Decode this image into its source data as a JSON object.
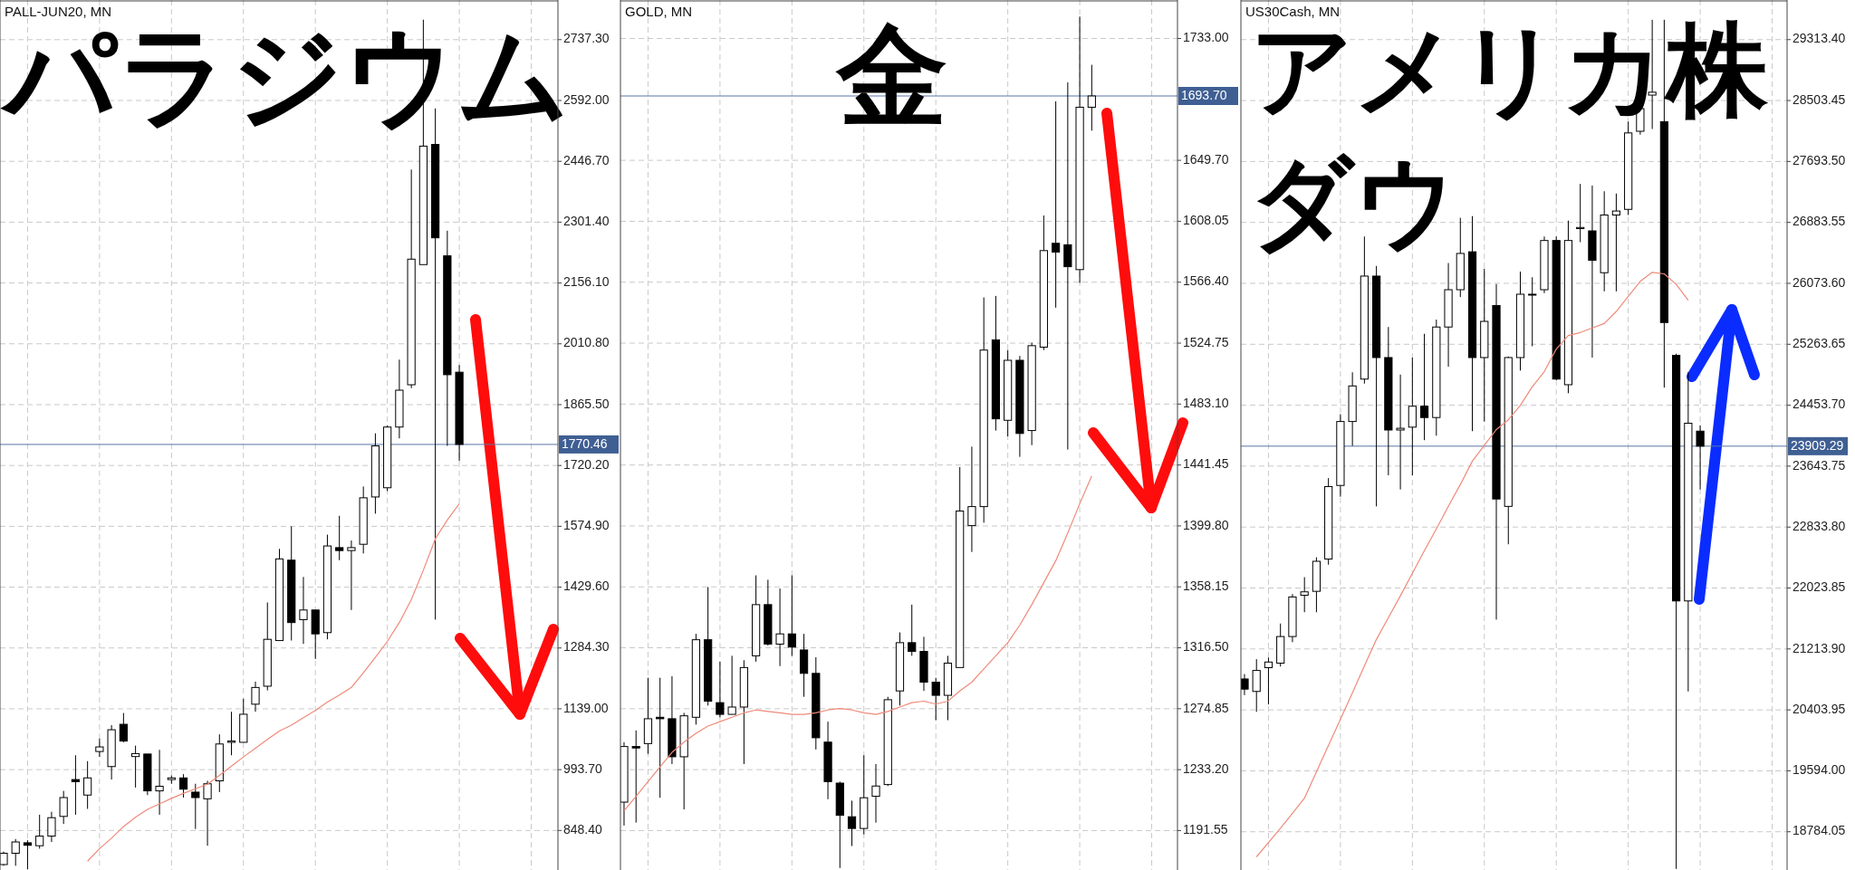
{
  "chart_data": [
    {
      "type": "candlestick",
      "title": "PALL-JUN20, MN",
      "annotations": [
        "パラジウム"
      ],
      "categories": [
        null,
        null,
        null,
        null,
        null,
        null,
        null,
        null,
        null,
        null,
        null,
        null,
        null,
        null,
        null,
        null,
        null,
        null,
        null,
        null,
        null,
        null,
        null,
        null,
        null,
        null,
        null,
        null,
        null,
        null,
        null,
        null,
        null,
        null,
        null,
        null,
        null,
        null,
        null
      ],
      "ohlc": [
        [
          767,
          798,
          764,
          794
        ],
        [
          794,
          828,
          764,
          821
        ],
        [
          819,
          825,
          756,
          813
        ],
        [
          812,
          886,
          805,
          835
        ],
        [
          835,
          893,
          821,
          879
        ],
        [
          882,
          943,
          864,
          927
        ],
        [
          970,
          1028,
          886,
          965
        ],
        [
          933,
          1014,
          900,
          974
        ],
        [
          1037,
          1068,
          1024,
          1048
        ],
        [
          1001,
          1100,
          970,
          1089
        ],
        [
          1102,
          1129,
          1059,
          1062
        ],
        [
          1025,
          1051,
          951,
          1032
        ],
        [
          1031,
          1031,
          933,
          943
        ],
        [
          943,
          1041,
          886,
          954
        ],
        [
          970,
          980,
          960,
          974
        ],
        [
          974,
          983,
          927,
          947
        ],
        [
          940,
          960,
          852,
          927
        ],
        [
          924,
          967,
          812,
          960
        ],
        [
          967,
          1078,
          940,
          1055
        ],
        [
          1059,
          1132,
          1028,
          1062
        ],
        [
          1059,
          1163,
          1059,
          1126
        ],
        [
          1150,
          1204,
          1132,
          1190
        ],
        [
          1193,
          1393,
          1183,
          1305
        ],
        [
          1302,
          1521,
          1302,
          1497
        ],
        [
          1494,
          1575,
          1302,
          1345
        ],
        [
          1352,
          1454,
          1294,
          1375
        ],
        [
          1375,
          1375,
          1258,
          1318
        ],
        [
          1321,
          1555,
          1305,
          1528
        ],
        [
          1524,
          1600,
          1494,
          1517
        ],
        [
          1517,
          1541,
          1375,
          1524
        ],
        [
          1532,
          1670,
          1510,
          1643
        ],
        [
          1645,
          1797,
          1605,
          1767
        ],
        [
          1667,
          1816,
          1659,
          1812
        ],
        [
          1812,
          1973,
          1785,
          1900
        ],
        [
          1913,
          2427,
          1905,
          2213
        ],
        [
          2200,
          2785,
          2200,
          2483
        ],
        [
          2487,
          2573,
          1352,
          2264
        ],
        [
          2221,
          2281,
          1767,
          1937
        ],
        [
          1943,
          1960,
          1731,
          1770.46
        ]
      ],
      "series": [
        {
          "type": "line",
          "color": "#f08a7a",
          "values": [
            null,
            null,
            null,
            null,
            null,
            null,
            null,
            775,
            805,
            830,
            858,
            880,
            899,
            912,
            925,
            937,
            948,
            959,
            980,
            1002,
            1024,
            1045,
            1066,
            1086,
            1100,
            1118,
            1135,
            1155,
            1172,
            1190,
            1225,
            1262,
            1300,
            1345,
            1400,
            1470,
            1545,
            1590,
            1629
          ]
        }
      ],
      "ylim": [
        754,
        2832
      ],
      "yticks": [
        {
          "value": 2737.3,
          "label": "2737.30"
        },
        {
          "value": 2592,
          "label": "2592.00"
        },
        {
          "value": 2446.7,
          "label": "2446.70"
        },
        {
          "value": 2301.4,
          "label": "2301.40"
        },
        {
          "value": 2156.1,
          "label": "2156.10"
        },
        {
          "value": 2010.8,
          "label": "2010.80"
        },
        {
          "value": 1865.5,
          "label": "1865.50"
        },
        {
          "value": 1720.2,
          "label": "1720.20"
        },
        {
          "value": 1574.9,
          "label": "1574.90"
        },
        {
          "value": 1429.6,
          "label": "1429.60"
        },
        {
          "value": 1284.3,
          "label": "1284.30"
        },
        {
          "value": 1139,
          "label": "1139.00"
        },
        {
          "value": 993.7,
          "label": "993.70"
        },
        {
          "value": 848.4,
          "label": "848.40"
        }
      ],
      "ref_lines": [
        {
          "axis": "y",
          "value": 1770.46,
          "label": "1770.46",
          "color": "#5877a8"
        }
      ],
      "grid": true,
      "tick_labels": "y"
    },
    {
      "type": "candlestick",
      "title": "GOLD, MN",
      "annotations": [
        "金"
      ],
      "categories": [
        null,
        null,
        null,
        null,
        null,
        null,
        null,
        null,
        null,
        null,
        null,
        null,
        null,
        null,
        null,
        null,
        null,
        null,
        null,
        null,
        null,
        null,
        null,
        null,
        null,
        null,
        null,
        null,
        null,
        null,
        null,
        null,
        null,
        null,
        null,
        null,
        null,
        null,
        null,
        null
      ],
      "ohlc": [
        [
          1211,
          1252,
          1195,
          1249
        ],
        [
          1249,
          1260,
          1197,
          1248
        ],
        [
          1251,
          1296,
          1244,
          1268
        ],
        [
          1269,
          1296,
          1214,
          1268
        ],
        [
          1268,
          1297,
          1237,
          1242
        ],
        [
          1242,
          1272,
          1206,
          1270
        ],
        [
          1269,
          1326,
          1264,
          1322
        ],
        [
          1322,
          1358,
          1277,
          1280
        ],
        [
          1279,
          1307,
          1269,
          1271
        ],
        [
          1271,
          1311,
          1271,
          1276
        ],
        [
          1276,
          1308,
          1237,
          1303
        ],
        [
          1311,
          1366,
          1307,
          1346
        ],
        [
          1346,
          1363,
          1318,
          1319
        ],
        [
          1319,
          1357,
          1304,
          1326
        ],
        [
          1326,
          1366,
          1311,
          1317
        ],
        [
          1315,
          1326,
          1283,
          1299
        ],
        [
          1299,
          1310,
          1247,
          1255
        ],
        [
          1252,
          1266,
          1213,
          1225
        ],
        [
          1224,
          1225,
          1166,
          1202
        ],
        [
          1201,
          1212,
          1181,
          1193
        ],
        [
          1193,
          1243,
          1189,
          1214
        ],
        [
          1215,
          1237,
          1197,
          1222
        ],
        [
          1223,
          1283,
          1222,
          1281
        ],
        [
          1287,
          1327,
          1277,
          1320
        ],
        [
          1320,
          1346,
          1311,
          1314
        ],
        [
          1314,
          1324,
          1287,
          1293
        ],
        [
          1293,
          1296,
          1267,
          1284
        ],
        [
          1284,
          1311,
          1267,
          1306
        ],
        [
          1303,
          1440,
          1303,
          1410
        ],
        [
          1400,
          1454,
          1382,
          1413
        ],
        [
          1413,
          1556,
          1402,
          1520
        ],
        [
          1527,
          1557,
          1465,
          1473
        ],
        [
          1472,
          1520,
          1461,
          1513
        ],
        [
          1513,
          1516,
          1447,
          1463
        ],
        [
          1465,
          1525,
          1455,
          1523
        ],
        [
          1522,
          1612,
          1520,
          1588
        ],
        [
          1593,
          1690,
          1549,
          1587
        ],
        [
          1592,
          1703,
          1452,
          1577
        ],
        [
          1575,
          1748,
          1566,
          1686
        ],
        [
          1686,
          1715,
          1670,
          1693.7
        ]
      ],
      "series": [
        {
          "type": "line",
          "color": "#f08a7a",
          "values": [
            1205,
            1215,
            1225,
            1235,
            1245,
            1252,
            1258,
            1263,
            1266,
            1269,
            1272,
            1274,
            1273,
            1272,
            1271,
            1271,
            1272,
            1274,
            1275,
            1274,
            1272,
            1271,
            1273,
            1276,
            1279,
            1280,
            1278,
            1280,
            1287,
            1293,
            1302,
            1311,
            1320,
            1332,
            1346,
            1361,
            1376,
            1395,
            1415,
            1434
          ]
        }
      ],
      "ylim": [
        1164.6,
        1759.3
      ],
      "yticks": [
        {
          "value": 1733,
          "label": "1733.00"
        },
        {
          "value": 1649.7,
          "label": "1649.70"
        },
        {
          "value": 1608.05,
          "label": "1608.05"
        },
        {
          "value": 1566.4,
          "label": "1566.40"
        },
        {
          "value": 1524.75,
          "label": "1524.75"
        },
        {
          "value": 1483.1,
          "label": "1483.10"
        },
        {
          "value": 1441.45,
          "label": "1441.45"
        },
        {
          "value": 1399.8,
          "label": "1399.80"
        },
        {
          "value": 1358.15,
          "label": "1358.15"
        },
        {
          "value": 1316.5,
          "label": "1316.50"
        },
        {
          "value": 1274.85,
          "label": "1274.85"
        },
        {
          "value": 1233.2,
          "label": "1233.20"
        },
        {
          "value": 1191.55,
          "label": "1191.55"
        }
      ],
      "ref_lines": [
        {
          "axis": "y",
          "value": 1693.7,
          "label": "1693.70",
          "color": "#5877a8"
        }
      ],
      "grid": true,
      "tick_labels": "y"
    },
    {
      "type": "candlestick",
      "title": "US30Cash, MN",
      "annotations": [
        "アメリカ株",
        "ダウ"
      ],
      "categories": [
        null,
        null,
        null,
        null,
        null,
        null,
        null,
        null,
        null,
        null,
        null,
        null,
        null,
        null,
        null,
        null,
        null,
        null,
        null,
        null,
        null,
        null,
        null,
        null,
        null,
        null,
        null,
        null,
        null,
        null,
        null,
        null,
        null,
        null,
        null,
        null,
        null,
        null,
        null
      ],
      "ohlc": [
        [
          20815,
          20880,
          20600,
          20680
        ],
        [
          20649,
          21078,
          20378,
          20928
        ],
        [
          20965,
          21100,
          20476,
          21040
        ],
        [
          21025,
          21552,
          20980,
          21379
        ],
        [
          21379,
          21943,
          21304,
          21905
        ],
        [
          21928,
          22168,
          21702,
          21973
        ],
        [
          21980,
          22432,
          21702,
          22379
        ],
        [
          22409,
          23485,
          22334,
          23372
        ],
        [
          23387,
          24335,
          23237,
          24237
        ],
        [
          24237,
          24891,
          23913,
          24710
        ],
        [
          24801,
          26696,
          24741,
          26170
        ],
        [
          26170,
          26305,
          23109,
          25087
        ],
        [
          25087,
          25493,
          23522,
          24124
        ],
        [
          24124,
          24861,
          23334,
          24147
        ],
        [
          24162,
          25087,
          23522,
          24440
        ],
        [
          24440,
          25403,
          23989,
          24290
        ],
        [
          24290,
          25591,
          24049,
          25493
        ],
        [
          25493,
          26343,
          24966,
          25989
        ],
        [
          25989,
          26944,
          25891,
          26471
        ],
        [
          26493,
          26967,
          24109,
          25087
        ],
        [
          25087,
          26268,
          24237,
          25568
        ],
        [
          25779,
          26064,
          21604,
          23207
        ],
        [
          23109,
          25102,
          22605,
          25087
        ],
        [
          25087,
          26230,
          24914,
          25929
        ],
        [
          25922,
          26155,
          25237,
          25929
        ],
        [
          25989,
          26696,
          25944,
          26643
        ],
        [
          26643,
          26696,
          24786,
          24801
        ],
        [
          24726,
          26907,
          24613,
          26643
        ],
        [
          26801,
          27395,
          26621,
          26816
        ],
        [
          26771,
          27373,
          25087,
          26380
        ],
        [
          26215,
          27298,
          25967,
          26982
        ],
        [
          26982,
          27267,
          25967,
          27035
        ],
        [
          27057,
          28223,
          26982,
          28073
        ],
        [
          28095,
          28599,
          28050,
          28396
        ],
        [
          28576,
          29577,
          28125,
          28614
        ],
        [
          28223,
          29577,
          24688,
          25553
        ],
        [
          25117,
          25139,
          18290,
          21852
        ],
        [
          21852,
          24891,
          20649,
          24214
        ],
        [
          24109,
          24184,
          23334,
          23909.29
        ]
      ],
      "series": [
        {
          "type": "line",
          "color": "#f08a7a",
          "values": [
            null,
            18450,
            18640,
            18830,
            19030,
            19230,
            19580,
            19930,
            20280,
            20630,
            20990,
            21340,
            21630,
            21920,
            22220,
            22520,
            22810,
            23110,
            23400,
            23710,
            23920,
            24130,
            24260,
            24450,
            24700,
            24900,
            25200,
            25380,
            25420,
            25480,
            25540,
            25700,
            25900,
            26100,
            26220,
            26200,
            26060,
            25850,
            null
          ]
        }
      ],
      "ylim": [
        18275.6,
        29839.9
      ],
      "yticks": [
        {
          "value": 29313.4,
          "label": "29313.40"
        },
        {
          "value": 28503.45,
          "label": "28503.45"
        },
        {
          "value": 27693.5,
          "label": "27693.50"
        },
        {
          "value": 26883.55,
          "label": "26883.55"
        },
        {
          "value": 26073.6,
          "label": "26073.60"
        },
        {
          "value": 25263.65,
          "label": "25263.65"
        },
        {
          "value": 24453.7,
          "label": "24453.70"
        },
        {
          "value": 23643.75,
          "label": "23643.75"
        },
        {
          "value": 22833.8,
          "label": "22833.80"
        },
        {
          "value": 22023.85,
          "label": "22023.85"
        },
        {
          "value": 21213.9,
          "label": "21213.90"
        },
        {
          "value": 20403.95,
          "label": "20403.95"
        },
        {
          "value": 19594,
          "label": "19594.00"
        },
        {
          "value": 18784.05,
          "label": "18784.05"
        }
      ],
      "ref_lines": [
        {
          "axis": "y",
          "value": 23909.29,
          "label": "23909.29",
          "color": "#5877a8"
        }
      ],
      "grid": true,
      "tick_labels": "y"
    }
  ]
}
